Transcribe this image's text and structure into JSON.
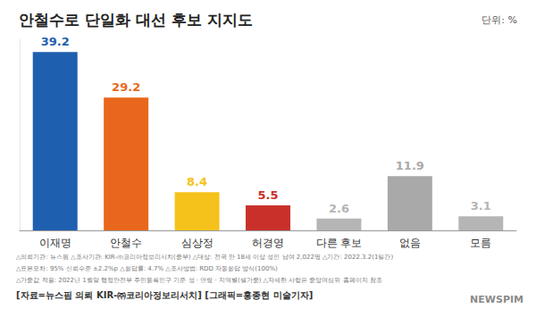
{
  "chart_data": {
    "type": "bar",
    "title": "안철수로 단일화 대선 후보 지지도",
    "subtitle": "단위: %",
    "categories": [
      "이재명",
      "안철수",
      "심상정",
      "허경영",
      "다른 후보",
      "없음",
      "모름"
    ],
    "values": [
      39.2,
      29.2,
      8.4,
      5.5,
      2.6,
      11.9,
      3.1
    ],
    "colors": [
      "#1f5fb0",
      "#e8671c",
      "#f5c21b",
      "#c9302a",
      "#b5b5b5",
      "#a9a9a9",
      "#b5b5b5"
    ],
    "ylim": [
      0,
      42
    ],
    "grid": false,
    "data_labels": true,
    "tick_labels": "x",
    "annotations": [
      "△의뢰기관: 뉴스핌 △조사기관: KIR-㈜코리아정보리서치(중부) △대상: 전국 만 18세 이상 성인 남여 2,022명 △기간: 2022.3.2(1일간)",
      "△표본오차: 95% 신뢰수준 ±2.2%p △응답률: 4.7% △조사방법: RDD 자동응답 방식(100%)",
      "△가중값 적용: 2022년 1월말 행정안전부 주민등록인구 기준 성 · 연령 · 지역별(셀가중) △자세한 사항은 중앙여심위 홈페이지 참조",
      "[자료=뉴스핌 의뢰 KIR-㈜코리아정보리서치] [그래픽=홍종현 미술기자]",
      "NEWSPIM"
    ]
  }
}
